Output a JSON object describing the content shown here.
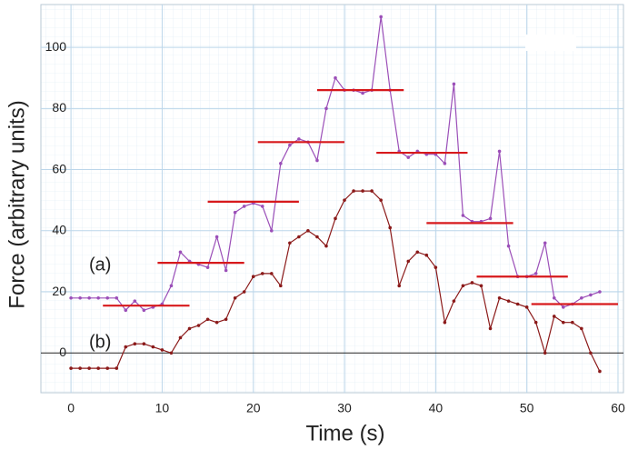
{
  "chart_data": {
    "type": "line",
    "xlabel": "Time (s)",
    "ylabel": "Force (arbitrary units)",
    "annotations": [
      "(a)",
      "(b)"
    ],
    "xlim": [
      -3.3,
      60.6
    ],
    "ylim": [
      -13,
      114
    ],
    "xticks": [
      0,
      10,
      20,
      30,
      40,
      50,
      60
    ],
    "yticks": [
      0,
      20,
      40,
      60,
      80,
      100
    ],
    "grid": true,
    "x": [
      0,
      1,
      2,
      3,
      4,
      5,
      6,
      7,
      8,
      9,
      10,
      11,
      12,
      13,
      14,
      15,
      16,
      17,
      18,
      19,
      20,
      21,
      22,
      23,
      24,
      25,
      26,
      27,
      28,
      29,
      30,
      31,
      32,
      33,
      34,
      35,
      36,
      37,
      38,
      39,
      40,
      41,
      42,
      43,
      44,
      45,
      46,
      47,
      48,
      49,
      50,
      51,
      52,
      53,
      54,
      55,
      56,
      57,
      58
    ],
    "series": [
      {
        "name": "(a)",
        "color": "#9b4fb8",
        "values": [
          18,
          18,
          18,
          18,
          18,
          18,
          14,
          17,
          14,
          15,
          16,
          22,
          33,
          30,
          29,
          28,
          38,
          27,
          46,
          48,
          49,
          48,
          40,
          62,
          68,
          70,
          69,
          63,
          80,
          90,
          86,
          86,
          85,
          86,
          110,
          86,
          66,
          64,
          66,
          65,
          65,
          62,
          88,
          45,
          43,
          43,
          44,
          66,
          35,
          25,
          25,
          26,
          36,
          18,
          15,
          16,
          18,
          19,
          20
        ]
      },
      {
        "name": "(b)",
        "color": "#8b1a1a",
        "values": [
          -5,
          -5,
          -5,
          -5,
          -5,
          -5,
          2,
          3,
          3,
          2,
          1,
          0,
          5,
          8,
          9,
          11,
          10,
          11,
          18,
          20,
          25,
          26,
          26,
          22,
          36,
          38,
          40,
          38,
          35,
          44,
          50,
          53,
          53,
          53,
          50,
          41,
          22,
          30,
          33,
          32,
          28,
          10,
          17,
          22,
          23,
          22,
          8,
          18,
          17,
          16,
          15,
          10,
          0,
          12,
          10,
          10,
          8,
          0,
          -6
        ]
      }
    ],
    "levels": {
      "color": "#d7191c",
      "segments": [
        {
          "x": [
            3.5,
            13
          ],
          "y": 15.5
        },
        {
          "x": [
            9.5,
            19
          ],
          "y": 29.5
        },
        {
          "x": [
            15,
            25
          ],
          "y": 49.5
        },
        {
          "x": [
            20.5,
            30
          ],
          "y": 69
        },
        {
          "x": [
            27,
            36.5
          ],
          "y": 86
        },
        {
          "x": [
            33.5,
            43.5
          ],
          "y": 65.5
        },
        {
          "x": [
            39,
            48.5
          ],
          "y": 42.5
        },
        {
          "x": [
            44.5,
            54.5
          ],
          "y": 25
        },
        {
          "x": [
            50.5,
            60
          ],
          "y": 16
        }
      ]
    }
  }
}
